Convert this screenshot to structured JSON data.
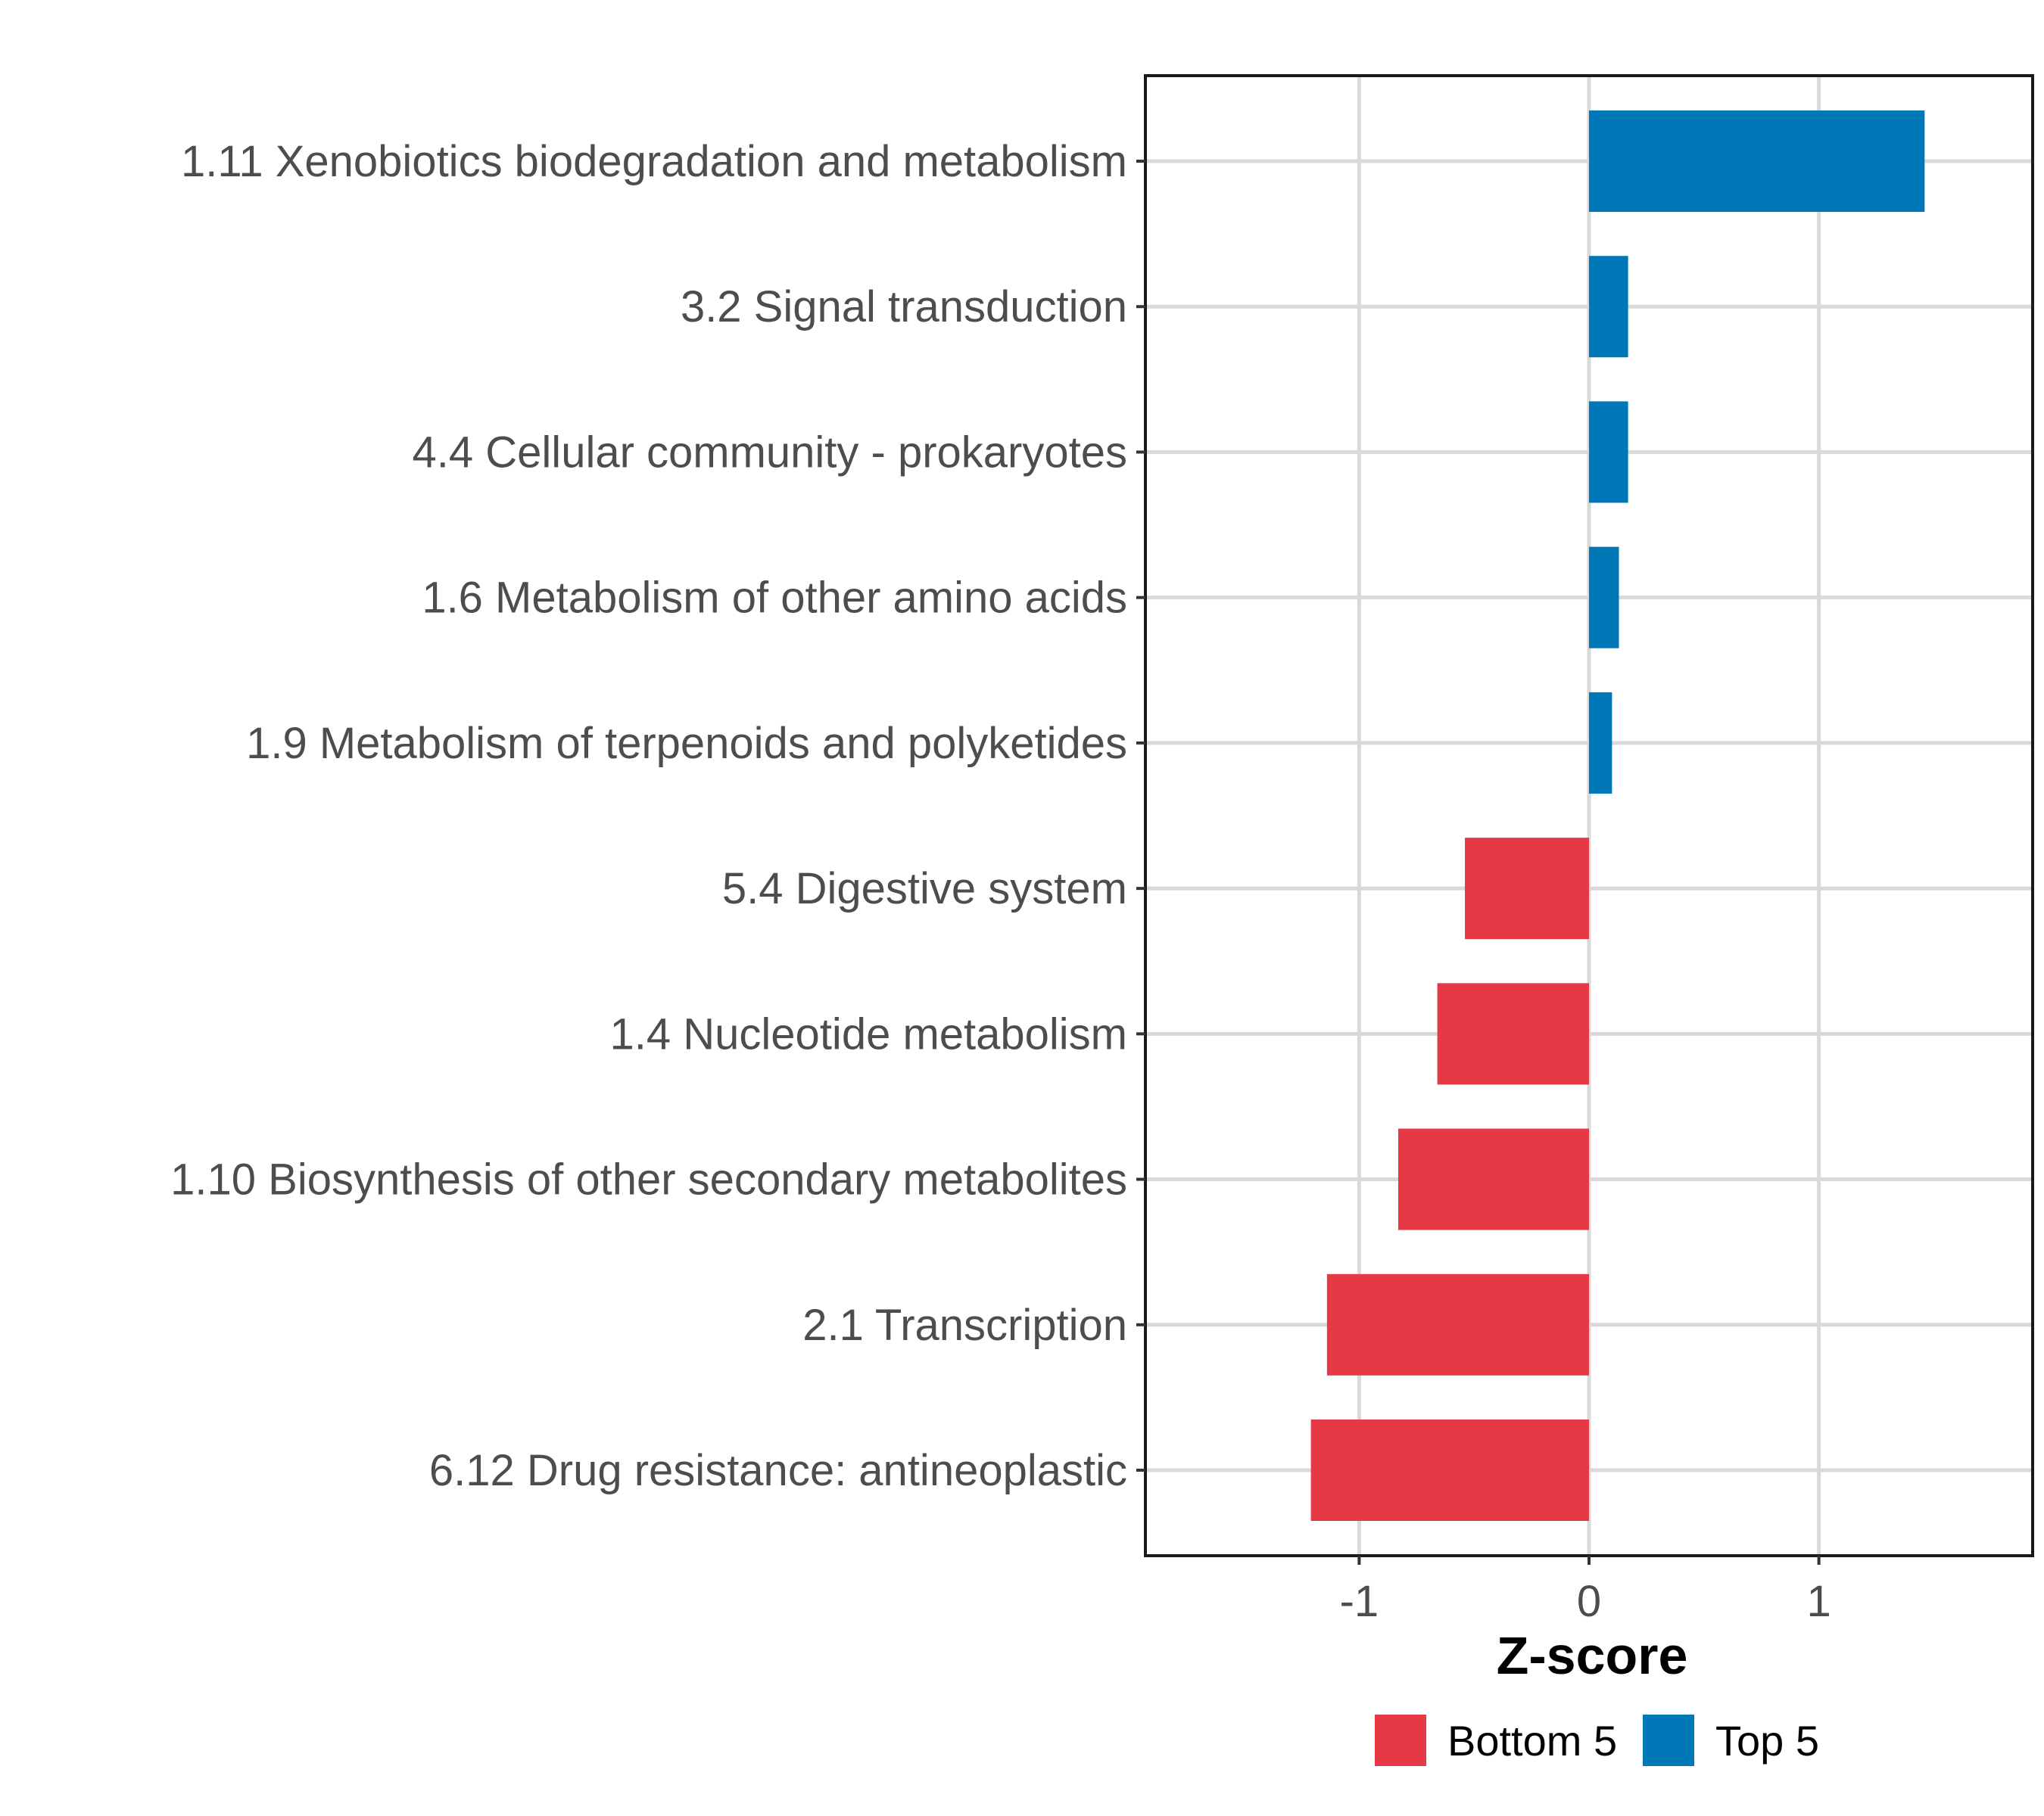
{
  "chart_data": {
    "type": "bar",
    "orientation": "horizontal",
    "categories": [
      "1.11 Xenobiotics biodegradation and metabolism",
      "3.2 Signal transduction",
      "4.4 Cellular community - prokaryotes",
      "1.6 Metabolism of other amino acids",
      "1.9 Metabolism of terpenoids and polyketides",
      "5.4 Digestive system",
      "1.4 Nucleotide metabolism",
      "1.10 Biosynthesis of other secondary metabolites",
      "2.1 Transcription",
      "6.12 Drug resistance: antineoplastic"
    ],
    "values": [
      1.46,
      0.17,
      0.17,
      0.13,
      0.1,
      -0.54,
      -0.66,
      -0.83,
      -1.14,
      -1.21
    ],
    "groups": [
      "Top 5",
      "Top 5",
      "Top 5",
      "Top 5",
      "Top 5",
      "Bottom 5",
      "Bottom 5",
      "Bottom 5",
      "Bottom 5",
      "Bottom 5"
    ],
    "xlabel": "Z-score",
    "ylabel": "",
    "xlim": [
      -1.93,
      1.93
    ],
    "xticks": [
      -1,
      0,
      1
    ],
    "xtick_labels": [
      "-1",
      "0",
      "1"
    ],
    "grid": true,
    "legend": {
      "position": "bottom",
      "entries": [
        {
          "label": "Bottom 5",
          "color": "#E63946"
        },
        {
          "label": "Top 5",
          "color": "#0077B6"
        }
      ]
    }
  },
  "colors": {
    "top": "#0077B6",
    "bottom": "#E63946",
    "grid": "#d9d9d9",
    "axis_text": "#4d4d4d"
  }
}
